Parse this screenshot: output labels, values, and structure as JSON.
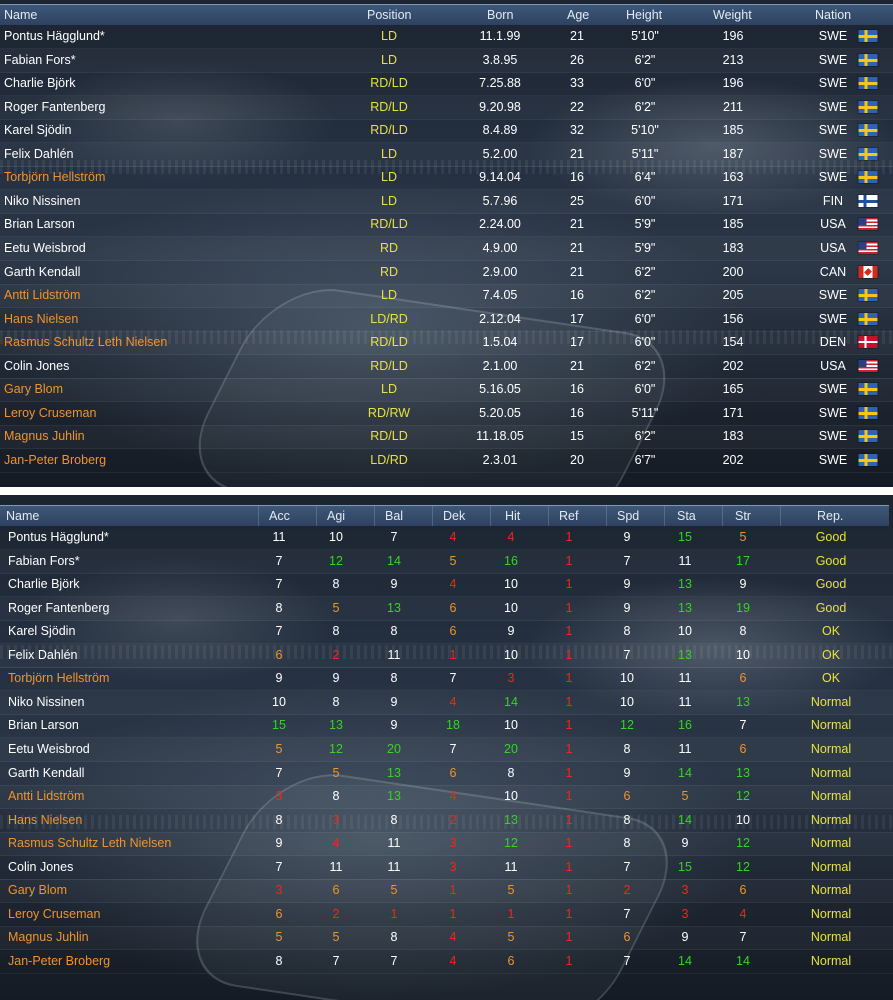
{
  "top_table": {
    "headers": {
      "name": "Name",
      "position": "Position",
      "born": "Born",
      "age": "Age",
      "height": "Height",
      "weight": "Weight",
      "nation": "Nation"
    },
    "rows": [
      {
        "name": "Pontus Hägglund*",
        "youth": false,
        "position": "LD",
        "born": "11.1.99",
        "age": "21",
        "height": "5'10\"",
        "weight": "196",
        "nation": "SWE",
        "flag": "swe"
      },
      {
        "name": "Fabian Fors*",
        "youth": false,
        "position": "LD",
        "born": "3.8.95",
        "age": "26",
        "height": "6'2\"",
        "weight": "213",
        "nation": "SWE",
        "flag": "swe"
      },
      {
        "name": "Charlie Björk",
        "youth": false,
        "position": "RD/LD",
        "born": "7.25.88",
        "age": "33",
        "height": "6'0\"",
        "weight": "196",
        "nation": "SWE",
        "flag": "swe"
      },
      {
        "name": "Roger Fantenberg",
        "youth": false,
        "position": "RD/LD",
        "born": "9.20.98",
        "age": "22",
        "height": "6'2\"",
        "weight": "211",
        "nation": "SWE",
        "flag": "swe"
      },
      {
        "name": "Karel Sjödin",
        "youth": false,
        "position": "RD/LD",
        "born": "8.4.89",
        "age": "32",
        "height": "5'10\"",
        "weight": "185",
        "nation": "SWE",
        "flag": "swe"
      },
      {
        "name": "Felix Dahlén",
        "youth": false,
        "position": "LD",
        "born": "5.2.00",
        "age": "21",
        "height": "5'11\"",
        "weight": "187",
        "nation": "SWE",
        "flag": "swe"
      },
      {
        "name": "Torbjörn Hellström",
        "youth": true,
        "position": "LD",
        "born": "9.14.04",
        "age": "16",
        "height": "6'4\"",
        "weight": "163",
        "nation": "SWE",
        "flag": "swe"
      },
      {
        "name": "Niko Nissinen",
        "youth": false,
        "position": "LD",
        "born": "5.7.96",
        "age": "25",
        "height": "6'0\"",
        "weight": "171",
        "nation": "FIN",
        "flag": "fin"
      },
      {
        "name": "Brian Larson",
        "youth": false,
        "position": "RD/LD",
        "born": "2.24.00",
        "age": "21",
        "height": "5'9\"",
        "weight": "185",
        "nation": "USA",
        "flag": "usa"
      },
      {
        "name": "Eetu Weisbrod",
        "youth": false,
        "position": "RD",
        "born": "4.9.00",
        "age": "21",
        "height": "5'9\"",
        "weight": "183",
        "nation": "USA",
        "flag": "usa"
      },
      {
        "name": "Garth Kendall",
        "youth": false,
        "position": "RD",
        "born": "2.9.00",
        "age": "21",
        "height": "6'2\"",
        "weight": "200",
        "nation": "CAN",
        "flag": "can"
      },
      {
        "name": "Antti Lidström",
        "youth": true,
        "position": "LD",
        "born": "7.4.05",
        "age": "16",
        "height": "6'2\"",
        "weight": "205",
        "nation": "SWE",
        "flag": "swe"
      },
      {
        "name": "Hans Nielsen",
        "youth": true,
        "position": "LD/RD",
        "born": "2.12.04",
        "age": "17",
        "height": "6'0\"",
        "weight": "156",
        "nation": "SWE",
        "flag": "swe"
      },
      {
        "name": "Rasmus Schultz Leth Nielsen",
        "youth": true,
        "position": "RD/LD",
        "born": "1.5.04",
        "age": "17",
        "height": "6'0\"",
        "weight": "154",
        "nation": "DEN",
        "flag": "den"
      },
      {
        "name": "Colin Jones",
        "youth": false,
        "position": "RD/LD",
        "born": "2.1.00",
        "age": "21",
        "height": "6'2\"",
        "weight": "202",
        "nation": "USA",
        "flag": "usa"
      },
      {
        "name": "Gary Blom",
        "youth": true,
        "position": "LD",
        "born": "5.16.05",
        "age": "16",
        "height": "6'0\"",
        "weight": "165",
        "nation": "SWE",
        "flag": "swe"
      },
      {
        "name": "Leroy Cruseman",
        "youth": true,
        "position": "RD/RW",
        "born": "5.20.05",
        "age": "16",
        "height": "5'11\"",
        "weight": "171",
        "nation": "SWE",
        "flag": "swe"
      },
      {
        "name": "Magnus Juhlin",
        "youth": true,
        "position": "RD/LD",
        "born": "11.18.05",
        "age": "15",
        "height": "6'2\"",
        "weight": "183",
        "nation": "SWE",
        "flag": "swe"
      },
      {
        "name": "Jan-Peter Broberg",
        "youth": true,
        "position": "LD/RD",
        "born": "2.3.01",
        "age": "20",
        "height": "6'7\"",
        "weight": "202",
        "nation": "SWE",
        "flag": "swe"
      }
    ]
  },
  "bottom_table": {
    "headers": {
      "name": "Name",
      "acc": "Acc",
      "agi": "Agi",
      "bal": "Bal",
      "dek": "Dek",
      "hit": "Hit",
      "ref": "Ref",
      "spd": "Spd",
      "sta": "Sta",
      "str": "Str",
      "rep": "Rep."
    },
    "rows": [
      {
        "name": "Pontus Hägglund*",
        "youth": false,
        "acc": "11",
        "agi": "10",
        "bal": "7",
        "dek": "4",
        "hit": "4",
        "ref": "1",
        "spd": "9",
        "sta": "15",
        "str": "5",
        "rep": "Good"
      },
      {
        "name": "Fabian Fors*",
        "youth": false,
        "acc": "7",
        "agi": "12",
        "bal": "14",
        "dek": "5",
        "hit": "16",
        "ref": "1",
        "spd": "7",
        "sta": "11",
        "str": "17",
        "rep": "Good"
      },
      {
        "name": "Charlie Björk",
        "youth": false,
        "acc": "7",
        "agi": "8",
        "bal": "9",
        "dek": "4",
        "hit": "10",
        "ref": "1",
        "spd": "9",
        "sta": "13",
        "str": "9",
        "rep": "Good"
      },
      {
        "name": "Roger Fantenberg",
        "youth": false,
        "acc": "8",
        "agi": "5",
        "bal": "13",
        "dek": "6",
        "hit": "10",
        "ref": "1",
        "spd": "9",
        "sta": "13",
        "str": "19",
        "rep": "Good"
      },
      {
        "name": "Karel Sjödin",
        "youth": false,
        "acc": "7",
        "agi": "8",
        "bal": "8",
        "dek": "6",
        "hit": "9",
        "ref": "1",
        "spd": "8",
        "sta": "10",
        "str": "8",
        "rep": "OK"
      },
      {
        "name": "Felix Dahlén",
        "youth": false,
        "acc": "6",
        "agi": "2",
        "bal": "11",
        "dek": "1",
        "hit": "10",
        "ref": "1",
        "spd": "7",
        "sta": "13",
        "str": "10",
        "rep": "OK"
      },
      {
        "name": "Torbjörn Hellström",
        "youth": true,
        "acc": "9",
        "agi": "9",
        "bal": "8",
        "dek": "7",
        "hit": "3",
        "ref": "1",
        "spd": "10",
        "sta": "11",
        "str": "6",
        "rep": "OK"
      },
      {
        "name": "Niko Nissinen",
        "youth": false,
        "acc": "10",
        "agi": "8",
        "bal": "9",
        "dek": "4",
        "hit": "14",
        "ref": "1",
        "spd": "10",
        "sta": "11",
        "str": "13",
        "rep": "Normal"
      },
      {
        "name": "Brian Larson",
        "youth": false,
        "acc": "15",
        "agi": "13",
        "bal": "9",
        "dek": "18",
        "hit": "10",
        "ref": "1",
        "spd": "12",
        "sta": "16",
        "str": "7",
        "rep": "Normal"
      },
      {
        "name": "Eetu Weisbrod",
        "youth": false,
        "acc": "5",
        "agi": "12",
        "bal": "20",
        "dek": "7",
        "hit": "20",
        "ref": "1",
        "spd": "8",
        "sta": "11",
        "str": "6",
        "rep": "Normal"
      },
      {
        "name": "Garth Kendall",
        "youth": false,
        "acc": "7",
        "agi": "5",
        "bal": "13",
        "dek": "6",
        "hit": "8",
        "ref": "1",
        "spd": "9",
        "sta": "14",
        "str": "13",
        "rep": "Normal"
      },
      {
        "name": "Antti Lidström",
        "youth": true,
        "acc": "3",
        "agi": "8",
        "bal": "13",
        "dek": "4",
        "hit": "10",
        "ref": "1",
        "spd": "6",
        "sta": "5",
        "str": "12",
        "rep": "Normal"
      },
      {
        "name": "Hans Nielsen",
        "youth": true,
        "acc": "8",
        "agi": "3",
        "bal": "8",
        "dek": "2",
        "hit": "13",
        "ref": "1",
        "spd": "8",
        "sta": "14",
        "str": "10",
        "rep": "Normal"
      },
      {
        "name": "Rasmus Schultz Leth Nielsen",
        "youth": true,
        "acc": "9",
        "agi": "4",
        "bal": "11",
        "dek": "3",
        "hit": "12",
        "ref": "1",
        "spd": "8",
        "sta": "9",
        "str": "12",
        "rep": "Normal"
      },
      {
        "name": "Colin Jones",
        "youth": false,
        "acc": "7",
        "agi": "11",
        "bal": "11",
        "dek": "3",
        "hit": "11",
        "ref": "1",
        "spd": "7",
        "sta": "15",
        "str": "12",
        "rep": "Normal"
      },
      {
        "name": "Gary Blom",
        "youth": true,
        "acc": "3",
        "agi": "6",
        "bal": "5",
        "dek": "1",
        "hit": "5",
        "ref": "1",
        "spd": "2",
        "sta": "3",
        "str": "6",
        "rep": "Normal"
      },
      {
        "name": "Leroy Cruseman",
        "youth": true,
        "acc": "6",
        "agi": "2",
        "bal": "1",
        "dek": "1",
        "hit": "1",
        "ref": "1",
        "spd": "7",
        "sta": "3",
        "str": "4",
        "rep": "Normal"
      },
      {
        "name": "Magnus Juhlin",
        "youth": true,
        "acc": "5",
        "agi": "5",
        "bal": "8",
        "dek": "4",
        "hit": "5",
        "ref": "1",
        "spd": "6",
        "sta": "9",
        "str": "7",
        "rep": "Normal"
      },
      {
        "name": "Jan-Peter Broberg",
        "youth": true,
        "acc": "8",
        "agi": "7",
        "bal": "7",
        "dek": "4",
        "hit": "6",
        "ref": "1",
        "spd": "7",
        "sta": "14",
        "str": "14",
        "rep": "Normal"
      }
    ]
  },
  "colors": {
    "header_bg": "#35506f",
    "name_regular": "#ffffff",
    "name_youth": "#f0932c",
    "position": "#e7e23c",
    "attr_good": "#35d420",
    "attr_average": "#ffffff",
    "attr_mid": "#f0932c",
    "attr_bad": "#ee2a14",
    "reputation": "#e7e23c"
  }
}
